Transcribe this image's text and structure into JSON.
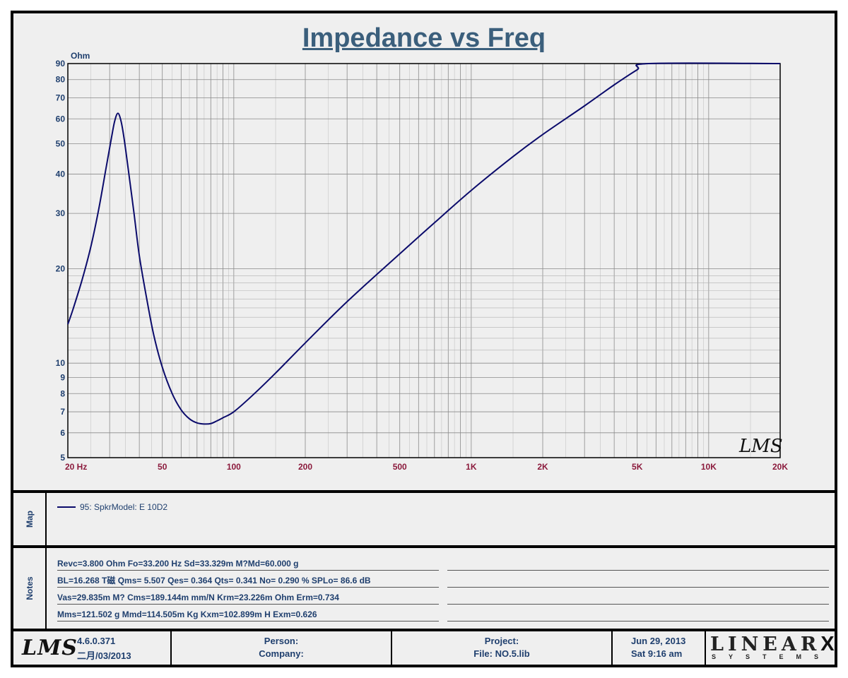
{
  "title": "Impedance vs Freq",
  "chart_data": {
    "type": "line",
    "title": "Impedance vs Freq",
    "ylabel": "Ohm",
    "xlabel": "Hz",
    "x_scale": "log",
    "y_scale": "log",
    "xlim": [
      20,
      20000
    ],
    "ylim": [
      5,
      90
    ],
    "grid": true,
    "x_tick_labels": [
      {
        "value": 20,
        "label": "20  Hz"
      },
      {
        "value": 50,
        "label": "50"
      },
      {
        "value": 100,
        "label": "100"
      },
      {
        "value": 200,
        "label": "200"
      },
      {
        "value": 500,
        "label": "500"
      },
      {
        "value": 1000,
        "label": "1K"
      },
      {
        "value": 2000,
        "label": "2K"
      },
      {
        "value": 5000,
        "label": "5K"
      },
      {
        "value": 10000,
        "label": "10K"
      },
      {
        "value": 20000,
        "label": "20K"
      }
    ],
    "y_tick_labels": [
      {
        "value": 5,
        "label": "5"
      },
      {
        "value": 6,
        "label": "6"
      },
      {
        "value": 7,
        "label": "7"
      },
      {
        "value": 8,
        "label": "8"
      },
      {
        "value": 9,
        "label": "9"
      },
      {
        "value": 10,
        "label": "10"
      },
      {
        "value": 20,
        "label": "20"
      },
      {
        "value": 30,
        "label": "30"
      },
      {
        "value": 40,
        "label": "40"
      },
      {
        "value": 50,
        "label": "50"
      },
      {
        "value": 60,
        "label": "60"
      },
      {
        "value": 70,
        "label": "70"
      },
      {
        "value": 80,
        "label": "80"
      },
      {
        "value": 90,
        "label": "90"
      }
    ],
    "series": [
      {
        "name": "95: SpkrModel: E 10D2",
        "color": "#0b0b6b",
        "points": [
          [
            20,
            13.3
          ],
          [
            21,
            14.8
          ],
          [
            23,
            18.5
          ],
          [
            25,
            23.5
          ],
          [
            27,
            31
          ],
          [
            29,
            42
          ],
          [
            30.5,
            52
          ],
          [
            31.5,
            59
          ],
          [
            32.5,
            62.5
          ],
          [
            33.5,
            59
          ],
          [
            34.5,
            52
          ],
          [
            36,
            41
          ],
          [
            38,
            30
          ],
          [
            40,
            22
          ],
          [
            43,
            16
          ],
          [
            46,
            12.3
          ],
          [
            50,
            9.7
          ],
          [
            55,
            8.0
          ],
          [
            60,
            7.1
          ],
          [
            65,
            6.65
          ],
          [
            70,
            6.45
          ],
          [
            75,
            6.4
          ],
          [
            80,
            6.42
          ],
          [
            85,
            6.55
          ],
          [
            90,
            6.7
          ],
          [
            100,
            7.0
          ],
          [
            120,
            7.9
          ],
          [
            150,
            9.3
          ],
          [
            200,
            11.6
          ],
          [
            300,
            15.7
          ],
          [
            500,
            22.3
          ],
          [
            700,
            28
          ],
          [
            1000,
            35.5
          ],
          [
            1500,
            45.5
          ],
          [
            2000,
            53.5
          ],
          [
            3000,
            66
          ],
          [
            4000,
            77
          ],
          [
            5000,
            86
          ],
          [
            5600,
            90
          ]
        ],
        "clipped_at_top_until": 20000
      }
    ]
  },
  "watermark": "LMS",
  "map": {
    "label": "Map",
    "legend_text": "95: SpkrModel: E 10D2"
  },
  "notes": {
    "label": "Notes",
    "lines": [
      "Revc=3.800 Ohm  Fo=33.200 Hz  Sd=33.329m M?Md=60.000 g",
      "BL=16.268 T磁  Qms= 5.507  Qes= 0.364  Qts= 0.341  No= 0.290 %  SPLo= 86.6 dB",
      "Vas=29.835m M? Cms=189.144m mm/N  Krm=23.226m Ohm  Erm=0.734",
      "Mms=121.502 g  Mmd=114.505m Kg  Kxm=102.899m H  Exm=0.626"
    ]
  },
  "footer": {
    "logo": "LMS",
    "version": "4.6.0.371",
    "version_date": "二月/03/2013",
    "person": "Person:",
    "company": "Company:",
    "project": "Project:",
    "file": "File: NO.5.lib",
    "date": "Jun 29, 2013",
    "time": "Sat  9:16 am",
    "brand_main": "LINEAR",
    "brand_x": "X",
    "brand_sub": "SYSTEMS"
  }
}
